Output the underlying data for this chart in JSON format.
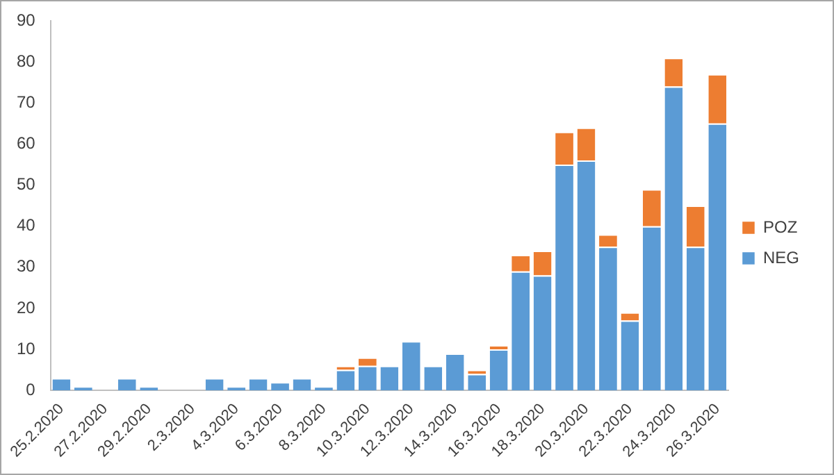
{
  "chart_data": {
    "type": "bar",
    "stacked": true,
    "categories": [
      "25.2.2020",
      null,
      "27.2.2020",
      null,
      "29.2.2020",
      null,
      "2.3.2020",
      null,
      "4.3.2020",
      null,
      "6.3.2020",
      null,
      "8.3.2020",
      null,
      "10.3.2020",
      null,
      "12.3.2020",
      null,
      "14.3.2020",
      null,
      "16.3.2020",
      null,
      "18.3.2020",
      null,
      "20.3.2020",
      null,
      "22.3.2020",
      null,
      "24.3.2020",
      null,
      "26.3.2020"
    ],
    "series": [
      {
        "name": "NEG",
        "color": "#5b9bd5",
        "values": [
          3,
          1,
          0,
          3,
          1,
          0,
          0,
          3,
          1,
          3,
          2,
          3,
          1,
          5,
          6,
          6,
          12,
          6,
          9,
          4,
          10,
          29,
          28,
          55,
          56,
          35,
          17,
          40,
          74,
          35,
          65
        ]
      },
      {
        "name": "POZ",
        "color": "#ed7d31",
        "values": [
          0,
          0,
          0,
          0,
          0,
          0,
          0,
          0,
          0,
          0,
          0,
          0,
          0,
          1,
          2,
          0,
          0,
          0,
          0,
          1,
          1,
          4,
          6,
          8,
          8,
          3,
          2,
          9,
          7,
          10,
          12
        ]
      }
    ],
    "ylim": [
      0,
      90
    ],
    "yticks": [
      0,
      10,
      20,
      30,
      40,
      50,
      60,
      70,
      80,
      90
    ],
    "grid": false,
    "legend": "right"
  }
}
